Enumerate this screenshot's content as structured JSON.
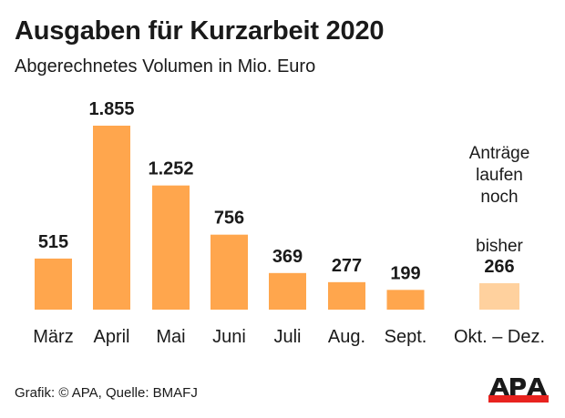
{
  "header": {
    "title": "Ausgaben für Kurzarbeit 2020",
    "subtitle": "Abgerechnetes Volumen in Mio. Euro"
  },
  "chart_data": {
    "type": "bar",
    "title": "Ausgaben für Kurzarbeit 2020",
    "subtitle": "Abgerechnetes Volumen in Mio. Euro",
    "xlabel": "",
    "ylabel": "Mio. Euro",
    "ylim": [
      0,
      1855
    ],
    "grid": false,
    "categories": [
      "März",
      "April",
      "Mai",
      "Juni",
      "Juli",
      "Aug.",
      "Sept.",
      "Okt. – Dez."
    ],
    "values": [
      515,
      1855,
      1252,
      756,
      369,
      277,
      199,
      266
    ],
    "value_labels": [
      "515",
      "1.855",
      "1.252",
      "756",
      "369",
      "277",
      "199",
      "266"
    ],
    "preliminary": [
      false,
      false,
      false,
      false,
      false,
      false,
      false,
      true
    ],
    "annotation": {
      "lines": [
        "Anträge",
        "laufen",
        "noch"
      ],
      "prefix": "bisher"
    },
    "colors": {
      "bar": "#FFA64D",
      "bar_preliminary": "#FFD19E"
    }
  },
  "footer": {
    "credit": "Grafik: © APA, Quelle: BMAFJ"
  },
  "logo": {
    "text": "APA",
    "colors": {
      "letters": "#1a1a1a",
      "bar": "#E8231F"
    }
  }
}
